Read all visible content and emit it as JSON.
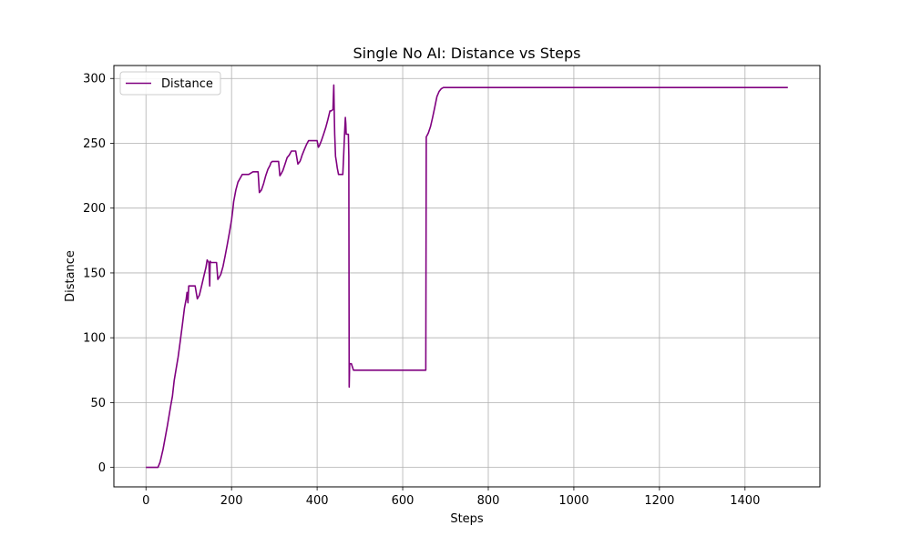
{
  "chart_data": {
    "type": "line",
    "title": "Single No AI: Distance vs Steps",
    "xlabel": "Steps",
    "ylabel": "Distance",
    "xlim": [
      -75,
      1575
    ],
    "ylim": [
      -15,
      310
    ],
    "xticks": [
      0,
      200,
      400,
      600,
      800,
      1000,
      1200,
      1400
    ],
    "yticks": [
      0,
      50,
      100,
      150,
      200,
      250,
      300
    ],
    "grid": true,
    "legend_position": "top-left",
    "series": [
      {
        "name": "Distance",
        "color": "#800080",
        "x": [
          0,
          28,
          33,
          40,
          50,
          58,
          62,
          66,
          70,
          75,
          80,
          85,
          90,
          94,
          96,
          98,
          100,
          105,
          108,
          110,
          115,
          120,
          125,
          130,
          135,
          140,
          143,
          145,
          147,
          149,
          150,
          152,
          155,
          160,
          165,
          168,
          170,
          175,
          180,
          185,
          190,
          195,
          200,
          203,
          205,
          210,
          215,
          220,
          225,
          230,
          240,
          250,
          255,
          262,
          265,
          270,
          275,
          280,
          285,
          290,
          292,
          295,
          300,
          305,
          310,
          313,
          315,
          320,
          325,
          330,
          335,
          340,
          345,
          350,
          355,
          360,
          362,
          365,
          370,
          375,
          380,
          385,
          390,
          395,
          400,
          403,
          405,
          410,
          415,
          420,
          425,
          430,
          433,
          437,
          439,
          440,
          441,
          443,
          445,
          447,
          450,
          455,
          460,
          462,
          464,
          466,
          467,
          468,
          470,
          473,
          474,
          475,
          476,
          477,
          480,
          485,
          490,
          500,
          550,
          600,
          650,
          654,
          655,
          657,
          660,
          665,
          670,
          675,
          680,
          685,
          690,
          695,
          700,
          800,
          900,
          1000,
          1100,
          1200,
          1300,
          1400,
          1500
        ],
        "y": [
          0,
          0,
          4,
          14,
          32,
          48,
          55,
          67,
          75,
          85,
          97,
          110,
          123,
          130,
          135,
          127,
          140,
          140,
          140,
          140,
          140,
          130,
          133,
          140,
          147,
          154,
          160,
          159,
          158,
          140,
          159,
          158,
          158,
          158,
          158,
          145,
          146,
          149,
          155,
          163,
          172,
          181,
          191,
          199,
          205,
          214,
          220,
          223,
          226,
          226,
          226,
          228,
          228,
          228,
          212,
          214,
          219,
          225,
          230,
          233,
          235,
          236,
          236,
          236,
          236,
          225,
          226,
          229,
          234,
          239,
          241,
          244,
          244,
          244,
          234,
          236,
          238,
          241,
          245,
          249,
          252,
          252,
          252,
          252,
          252,
          247,
          248,
          252,
          257,
          262,
          268,
          275,
          275,
          276,
          295,
          274,
          257,
          240,
          236,
          231,
          226,
          226,
          226,
          240,
          257,
          270,
          265,
          257,
          257,
          257,
          240,
          62,
          80,
          80,
          80,
          75,
          75,
          75,
          75,
          75,
          75,
          75,
          255,
          256,
          258,
          263,
          270,
          278,
          286,
          290,
          292,
          293,
          293,
          293,
          293,
          293,
          293,
          293,
          293,
          293,
          293
        ]
      }
    ]
  }
}
